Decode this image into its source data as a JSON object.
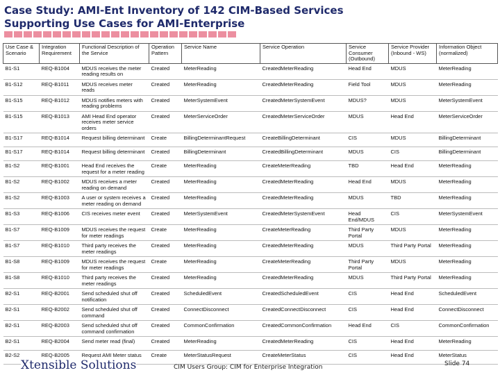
{
  "header": {
    "title_lines": [
      "Case Study: AMI-Ent Inventory of 142 CIM-Based Services",
      "Supporting Use Cases for AMI-Enterprise"
    ]
  },
  "table": {
    "columns": [
      "Use Case & Scenario",
      "Integration Requirement",
      "Functional Description of the Service",
      "Operation Pattern",
      "Service Name",
      "Service Operation",
      "Service Consumer (Outbound)",
      "Service Provider (Inbound - WS)",
      "Information Object (normalized)"
    ],
    "rows": [
      [
        "B1-S1",
        "REQ-B1004",
        "MDUS receives the meter reading results on",
        "Created",
        "MeterReading",
        "CreatedMeterReading",
        "Head End",
        "MDUS",
        "MeterReading"
      ],
      [
        "B1-S12",
        "REQ-B1011",
        "MDUS receives meter reads",
        "Created",
        "MeterReading",
        "CreatedMeterReading",
        "Field Tool",
        "MDUS",
        "MeterReading"
      ],
      [
        "B1-S15",
        "REQ-B1012",
        "MDUS notifies meters with reading problems",
        "Created",
        "MeterSystemEvent",
        "CreatedMeterSystemEvent",
        "MDUS?",
        "MDUS",
        "MeterSystemEvent"
      ],
      [
        "B1-S15",
        "REQ-B1013",
        "AMI Head End operator receives meter service orders",
        "Created",
        "MeterServiceOrder",
        "CreatedMeterServiceOrder",
        "MDUS",
        "Head End",
        "MeterServiceOrder"
      ],
      [
        "B1-S17",
        "REQ-B1014",
        "Request billing determinant",
        "Create",
        "BillingDeterminantRequest",
        "CreateBillingDeterminant",
        "CIS",
        "MDUS",
        "BillingDeterminant"
      ],
      [
        "B1-S17",
        "REQ-B1014",
        "Request billing determinant",
        "Created",
        "BillingDeterminant",
        "CreatedBillingDeterminant",
        "MDUS",
        "CIS",
        "BillingDeterminant"
      ],
      [
        "B1-S2",
        "REQ-B1001",
        "Head End receives the request for a meter reading",
        "Create",
        "MeterReading",
        "CreateMeterReading",
        "TBD",
        "Head End",
        "MeterReading"
      ],
      [
        "B1-S2",
        "REQ-B1002",
        "MDUS receives a meter reading on demand",
        "Created",
        "MeterReading",
        "CreatedMeterReading",
        "Head End",
        "MDUS",
        "MeterReading"
      ],
      [
        "B1-S2",
        "REQ-B1003",
        "A user or system receives a meter reading on demand",
        "Created",
        "MeterReading",
        "CreatedMeterReading",
        "MDUS",
        "TBD",
        "MeterReading"
      ],
      [
        "B1-S3",
        "REQ-B1006",
        "CIS receives meter event",
        "Created",
        "MeterSystemEvent",
        "CreatedMeterSystemEvent",
        "Head End/MDUS",
        "CIS",
        "MeterSystemEvent"
      ],
      [
        "B1-S7",
        "REQ-B1009",
        "MDUS receives the request for meter readings",
        "Create",
        "MeterReading",
        "CreateMeterReading",
        "Third Party Portal",
        "MDUS",
        "MeterReading"
      ],
      [
        "B1-S7",
        "REQ-B1010",
        "Third party receives the meter readings",
        "Created",
        "MeterReading",
        "CreatedMeterReading",
        "MDUS",
        "Third Party Portal",
        "MeterReading"
      ],
      [
        "B1-S8",
        "REQ-B1009",
        "MDUS receives the request for meter readings",
        "Create",
        "MeterReading",
        "CreateMeterReading",
        "Third Party Portal",
        "MDUS",
        "MeterReading"
      ],
      [
        "B1-S8",
        "REQ-B1010",
        "Third party receives the meter readings",
        "Created",
        "MeterReading",
        "CreatedMeterReading",
        "MDUS",
        "Third Party Portal",
        "MeterReading"
      ],
      [
        "B2-S1",
        "REQ-B2001",
        "Send scheduled shut off notification",
        "Created",
        "ScheduledEvent",
        "CreatedScheduledEvent",
        "CIS",
        "Head End",
        "ScheduledEvent"
      ],
      [
        "B2-S1",
        "REQ-B2002",
        "Send scheduled shut off command",
        "Created",
        "ConnectDisconnect",
        "CreatedConnectDisconnect",
        "CIS",
        "Head End",
        "ConnectDisconnect"
      ],
      [
        "B2-S1",
        "REQ-B2003",
        "Send scheduled shut off command confirmation",
        "Created",
        "CommonConfirmation",
        "CreatedCommonConfirmation",
        "Head End",
        "CIS",
        "CommonConfirmation"
      ],
      [
        "B2-S1",
        "REQ-B2004",
        "Send meter read (final)",
        "Created",
        "MeterReading",
        "CreatedMeterReading",
        "CIS",
        "Head End",
        "MeterReading"
      ],
      [
        "B2-S2",
        "REQ-B2005",
        "Request AMI Meter status",
        "Create",
        "MeterStatusRequest",
        "CreateMeterStatus",
        "CIS",
        "Head End",
        "MeterStatus"
      ]
    ]
  },
  "footer": {
    "logo": "Xtensible Solutions",
    "caption": "CIM Users Group: CIM for Enterprise Integration",
    "slide": "Slide 74"
  }
}
